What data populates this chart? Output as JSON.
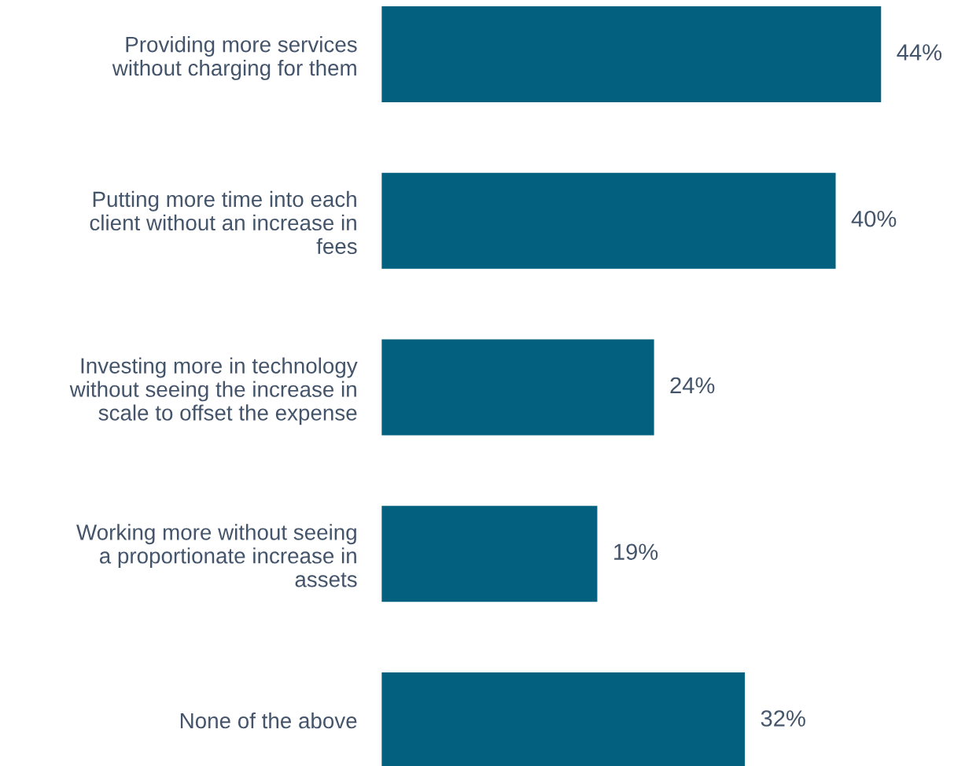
{
  "chart_data": {
    "type": "bar",
    "orientation": "horizontal",
    "categories": [
      "Providing more services\nwithout charging for them",
      "Putting more time into each\nclient without an increase in\nfees",
      "Investing more in technology\nwithout seeing the increase in\nscale to offset the expense",
      "Working more without seeing\na proportionate increase in\nassets",
      "None of the above"
    ],
    "values": [
      44,
      40,
      24,
      19,
      32
    ],
    "value_labels": [
      "44%",
      "40%",
      "24%",
      "19%",
      "32%"
    ],
    "color": "#03607f"
  }
}
